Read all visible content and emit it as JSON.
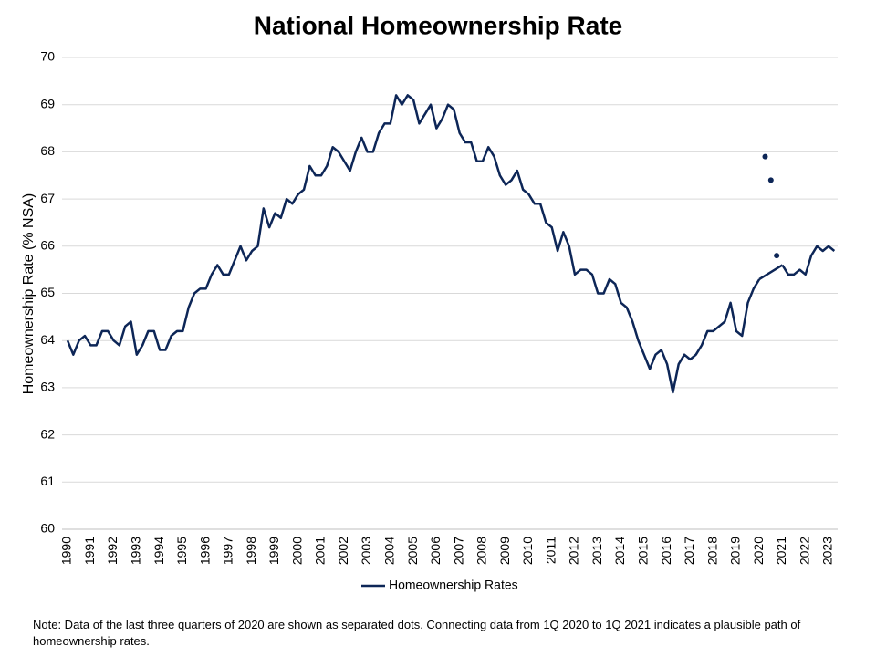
{
  "chart_data": {
    "type": "line",
    "title": "National Homeownership Rate",
    "y_label": "Homeownership Rate (% NSA)",
    "note": "Note: Data of the last three quarters of 2020 are shown as separated dots. Connecting data from 1Q 2020 to 1Q 2021 indicates a plausible path of homeownership rates.",
    "categories": [
      "1990",
      null,
      null,
      null,
      "1991",
      null,
      null,
      null,
      "1992",
      null,
      null,
      null,
      "1993",
      null,
      null,
      null,
      "1994",
      null,
      null,
      null,
      "1995",
      null,
      null,
      null,
      "1996",
      null,
      null,
      null,
      "1997",
      null,
      null,
      null,
      "1998",
      null,
      null,
      null,
      "1999",
      null,
      null,
      null,
      "2000",
      null,
      null,
      null,
      "2001",
      null,
      null,
      null,
      "2002",
      null,
      null,
      null,
      "2003",
      null,
      null,
      null,
      "2004",
      null,
      null,
      null,
      "2005",
      null,
      null,
      null,
      "2006",
      null,
      null,
      null,
      "2007",
      null,
      null,
      null,
      "2008",
      null,
      null,
      null,
      "2009",
      null,
      null,
      null,
      "2010",
      null,
      null,
      null,
      "2011",
      null,
      null,
      null,
      "2012",
      null,
      null,
      null,
      "2013",
      null,
      null,
      null,
      "2014",
      null,
      null,
      null,
      "2015",
      null,
      null,
      null,
      "2016",
      null,
      null,
      null,
      "2017",
      null,
      null,
      null,
      "2018",
      null,
      null,
      null,
      "2019",
      null,
      null,
      null,
      "2020",
      null,
      null,
      null,
      "2021",
      null,
      null,
      null,
      "2022",
      null,
      null,
      null,
      "2023",
      null
    ],
    "series": [
      {
        "name": "Homeownership Rates",
        "color": "#0d2657",
        "values": [
          64.0,
          63.7,
          64.0,
          64.1,
          63.9,
          63.9,
          64.2,
          64.2,
          64.0,
          63.9,
          64.3,
          64.4,
          63.7,
          63.9,
          64.2,
          64.2,
          63.8,
          63.8,
          64.1,
          64.2,
          64.2,
          64.7,
          65.0,
          65.1,
          65.1,
          65.4,
          65.6,
          65.4,
          65.4,
          65.7,
          66.0,
          65.7,
          65.9,
          66.0,
          66.8,
          66.4,
          66.7,
          66.6,
          67.0,
          66.9,
          67.1,
          67.2,
          67.7,
          67.5,
          67.5,
          67.7,
          68.1,
          68.0,
          67.8,
          67.6,
          68.0,
          68.3,
          68.0,
          68.0,
          68.4,
          68.6,
          68.6,
          69.2,
          69.0,
          69.2,
          69.1,
          68.6,
          68.8,
          69.0,
          68.5,
          68.7,
          69.0,
          68.9,
          68.4,
          68.2,
          68.2,
          67.8,
          67.8,
          68.1,
          67.9,
          67.5,
          67.3,
          67.4,
          67.6,
          67.2,
          67.1,
          66.9,
          66.9,
          66.5,
          66.4,
          65.9,
          66.3,
          66.0,
          65.4,
          65.5,
          65.5,
          65.4,
          65.0,
          65.0,
          65.3,
          65.2,
          64.8,
          64.7,
          64.4,
          64.0,
          63.7,
          63.4,
          63.7,
          63.8,
          63.5,
          62.9,
          63.5,
          63.7,
          63.6,
          63.7,
          63.9,
          64.2,
          64.2,
          64.3,
          64.4,
          64.8,
          64.2,
          64.1,
          64.8,
          65.1,
          65.3,
          null,
          null,
          null,
          65.6,
          65.4,
          65.4,
          65.5,
          65.4,
          65.8,
          66.0,
          65.9,
          66.0,
          65.9
        ]
      },
      {
        "color": "#0d2657",
        "style": "dots",
        "values": [
          null,
          null,
          null,
          null,
          null,
          null,
          null,
          null,
          null,
          null,
          null,
          null,
          null,
          null,
          null,
          null,
          null,
          null,
          null,
          null,
          null,
          null,
          null,
          null,
          null,
          null,
          null,
          null,
          null,
          null,
          null,
          null,
          null,
          null,
          null,
          null,
          null,
          null,
          null,
          null,
          null,
          null,
          null,
          null,
          null,
          null,
          null,
          null,
          null,
          null,
          null,
          null,
          null,
          null,
          null,
          null,
          null,
          null,
          null,
          null,
          null,
          null,
          null,
          null,
          null,
          null,
          null,
          null,
          null,
          null,
          null,
          null,
          null,
          null,
          null,
          null,
          null,
          null,
          null,
          null,
          null,
          null,
          null,
          null,
          null,
          null,
          null,
          null,
          null,
          null,
          null,
          null,
          null,
          null,
          null,
          null,
          null,
          null,
          null,
          null,
          null,
          null,
          null,
          null,
          null,
          null,
          null,
          null,
          null,
          null,
          null,
          null,
          null,
          null,
          null,
          null,
          null,
          null,
          null,
          null,
          null,
          67.9,
          67.4,
          65.8,
          null,
          null,
          null,
          null,
          null,
          null,
          null,
          null,
          null,
          null
        ]
      }
    ],
    "ylim": [
      60,
      70
    ],
    "yticks": [
      60,
      61,
      62,
      63,
      64,
      65,
      66,
      67,
      68,
      69,
      70
    ],
    "grid": true,
    "legend": "bottom"
  }
}
